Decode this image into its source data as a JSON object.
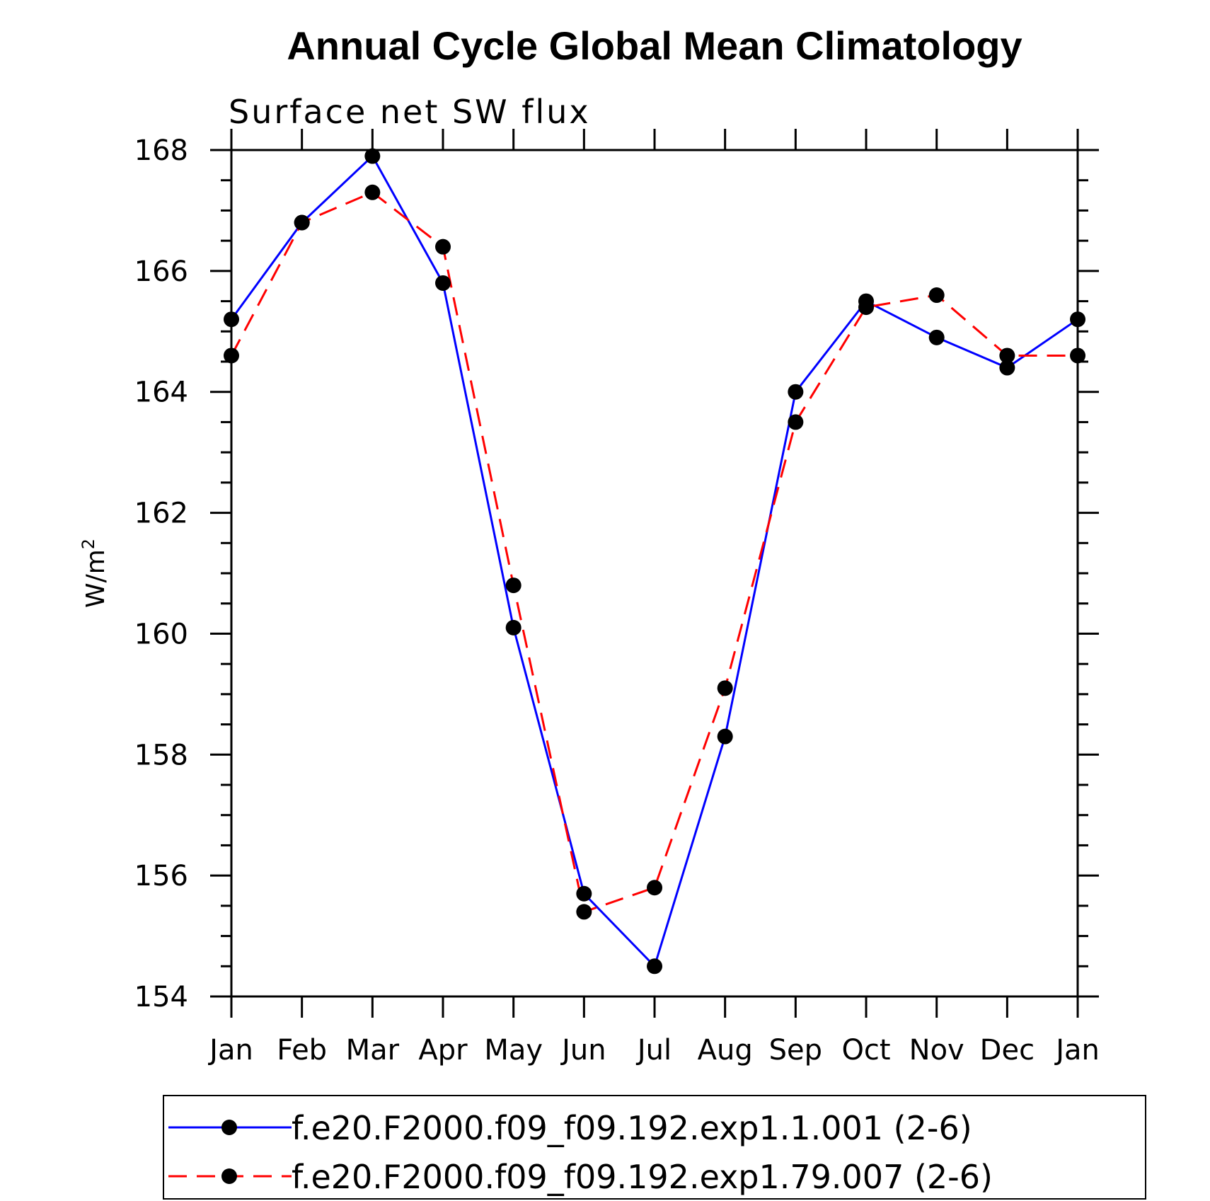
{
  "chart_data": {
    "type": "line",
    "title": "Annual Cycle Global Mean Climatology",
    "subtitle": "Surface net SW flux",
    "xlabel": "",
    "ylabel": "W/m",
    "ylabel_superscript": "2",
    "categories": [
      "Jan",
      "Feb",
      "Mar",
      "Apr",
      "May",
      "Jun",
      "Jul",
      "Aug",
      "Sep",
      "Oct",
      "Nov",
      "Dec",
      "Jan"
    ],
    "ylim": [
      154,
      168
    ],
    "yticks": [
      "154",
      "156",
      "158",
      "160",
      "162",
      "164",
      "166",
      "168"
    ],
    "series": [
      {
        "name": "f.e20.F2000.f09_f09.192.exp1.1.001 (2-6)",
        "color": "#0000ff",
        "style": "solid",
        "values": [
          165.2,
          166.8,
          167.9,
          165.8,
          160.1,
          155.7,
          154.5,
          158.3,
          164.0,
          165.5,
          164.9,
          164.4,
          165.2
        ]
      },
      {
        "name": "f.e20.F2000.f09_f09.192.exp1.79.007 (2-6)",
        "color": "#ff0000",
        "style": "dashed",
        "values": [
          164.6,
          166.8,
          167.3,
          166.4,
          160.8,
          155.4,
          155.8,
          159.1,
          163.5,
          165.4,
          165.6,
          164.6,
          164.6
        ]
      }
    ],
    "legend": "bottom"
  }
}
